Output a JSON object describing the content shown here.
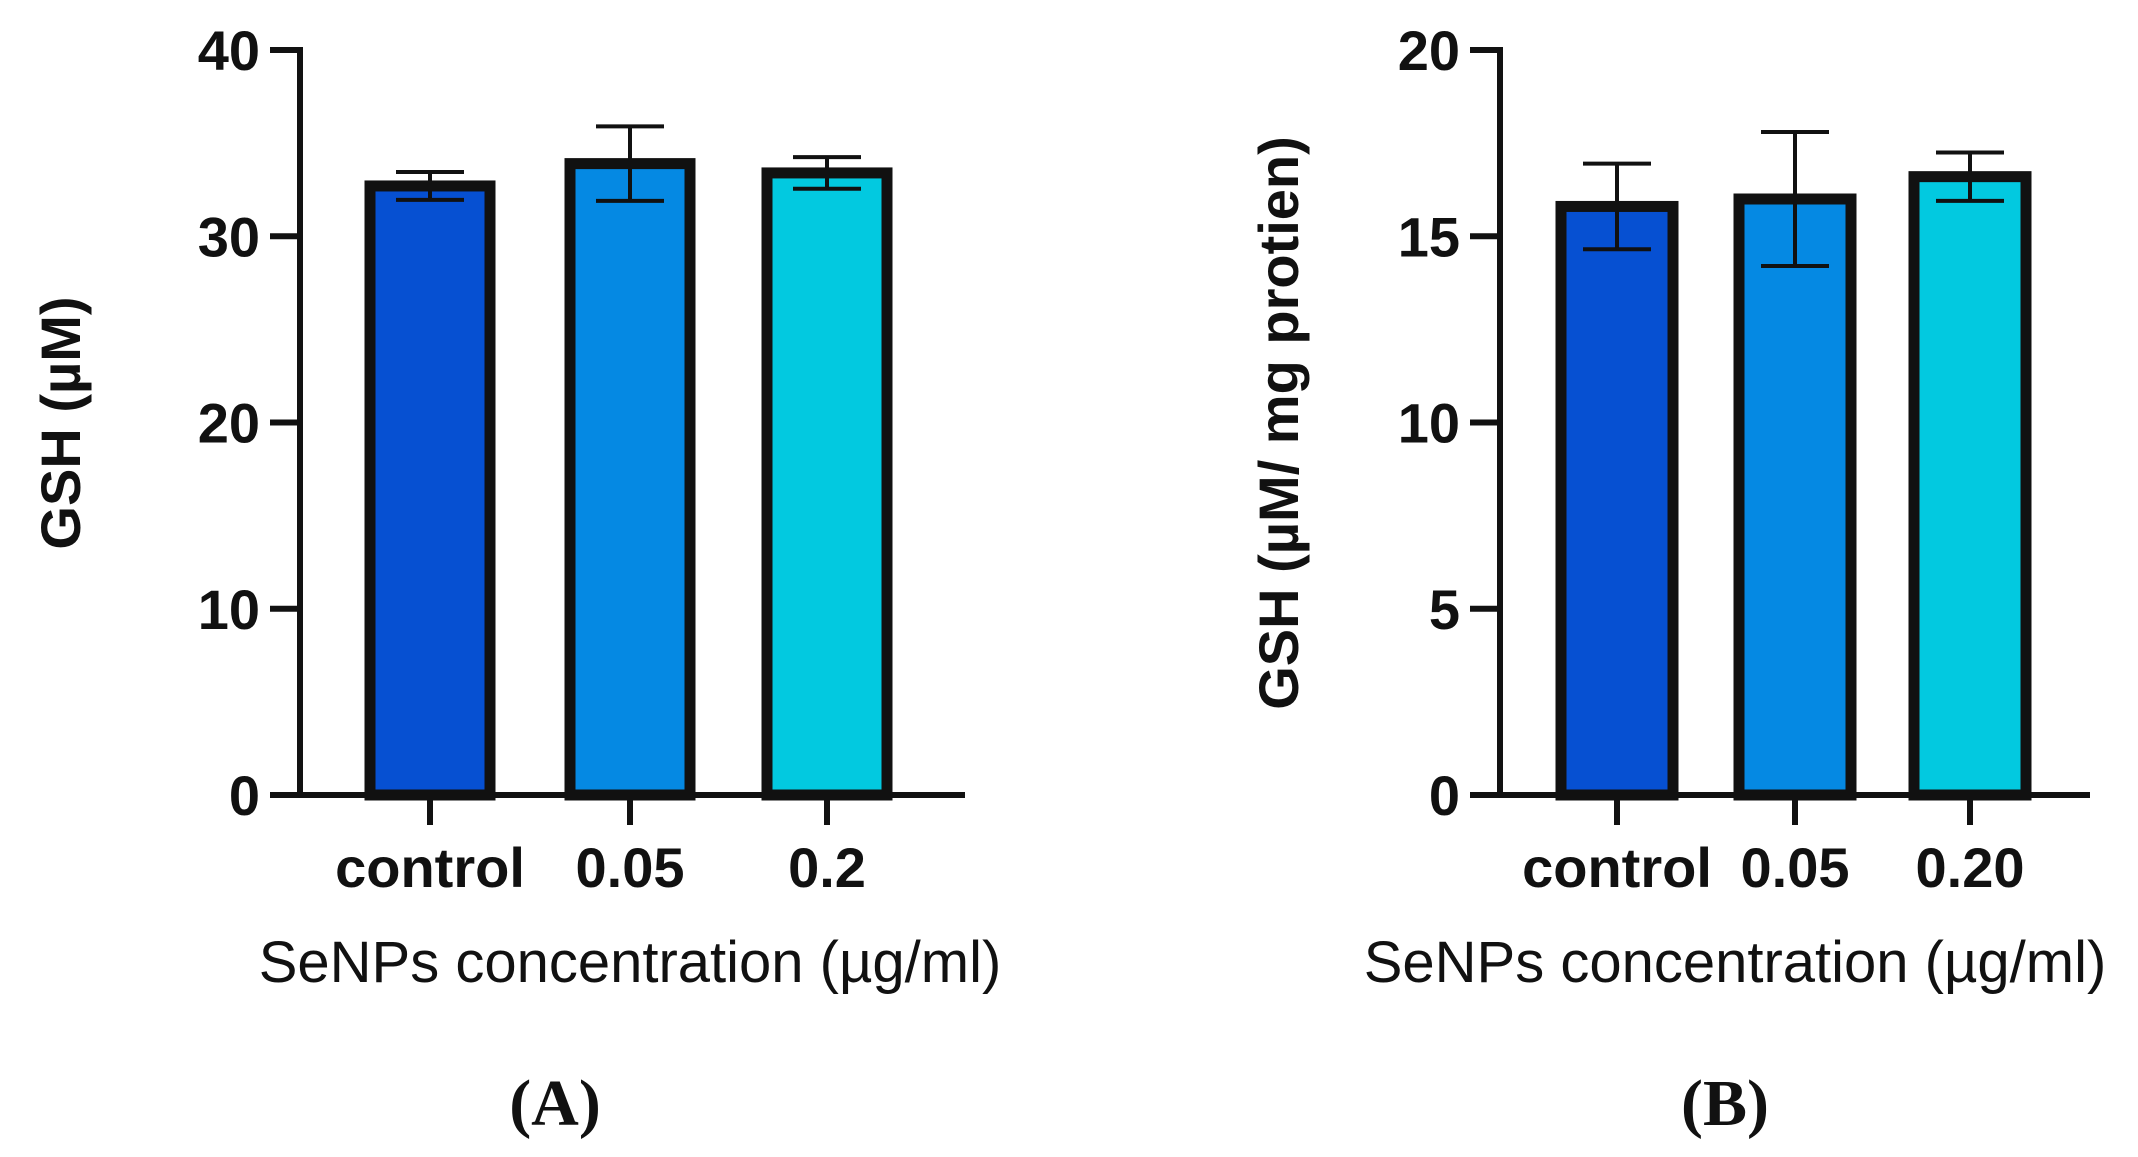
{
  "chart_data": [
    {
      "type": "bar",
      "panel": "A",
      "panel_label": "(A)",
      "title": "",
      "categories": [
        "control",
        "0.05",
        "0.2"
      ],
      "values": [
        32.7,
        33.9,
        33.4
      ],
      "errors": [
        0.75,
        2.0,
        0.85
      ],
      "colors": [
        "#0650d2",
        "#0589e3",
        "#02c9e0"
      ],
      "xlabel": "SeNPs concentration (µg/ml)",
      "ylabel": "GSH (µM)",
      "ylim": [
        0,
        40
      ],
      "yticks": [
        0,
        10,
        20,
        30,
        40
      ],
      "ytick_labels": [
        "0",
        "10",
        "20",
        "30",
        "40"
      ],
      "grid": false,
      "legend": "none"
    },
    {
      "type": "bar",
      "panel": "B",
      "panel_label": "(B)",
      "title": "",
      "categories": [
        "control",
        "0.05",
        "0.20"
      ],
      "values": [
        15.8,
        16.0,
        16.6
      ],
      "errors": [
        1.15,
        1.8,
        0.65
      ],
      "colors": [
        "#0650d2",
        "#0589e3",
        "#02c9e0"
      ],
      "xlabel": "SeNPs concentration (µg/ml)",
      "ylabel": "GSH (µM/ mg protien)",
      "ylim": [
        0,
        20
      ],
      "yticks": [
        0,
        5,
        10,
        15,
        20
      ],
      "ytick_labels": [
        "0",
        "5",
        "10",
        "15",
        "20"
      ],
      "grid": false,
      "legend": "none"
    }
  ]
}
